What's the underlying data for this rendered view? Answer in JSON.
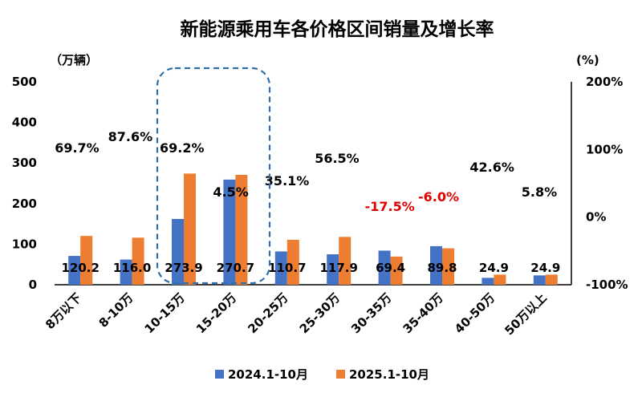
{
  "chart_data": {
    "type": "bar",
    "title": "新能源乘用车各价格区间销量及增长率",
    "y_unit_left": "（万辆）",
    "y_unit_right": "(%)",
    "ylim": [
      0,
      500
    ],
    "yticks": [
      0,
      100,
      200,
      300,
      400,
      500
    ],
    "y2lim": [
      -100,
      200
    ],
    "y2ticks": [
      "-100%",
      "0%",
      "100%",
      "200%"
    ],
    "categories": [
      "8万以下",
      "8-10万",
      "10-15万",
      "15-20万",
      "20-25万",
      "25-30万",
      "30-35万",
      "35-40万",
      "40-50万",
      "50万以上"
    ],
    "series": [
      {
        "name": "2024.1-10月",
        "color": "#4472C4",
        "values": [
          71,
          62,
          162,
          259,
          82,
          75,
          84,
          95,
          17,
          23
        ]
      },
      {
        "name": "2025.1-10月",
        "color": "#ED7D31",
        "values": [
          120.2,
          116.0,
          273.9,
          270.7,
          110.7,
          117.9,
          69.4,
          89.8,
          24.9,
          24.9
        ]
      }
    ],
    "value_labels": [
      "120.2",
      "116.0",
      "273.9",
      "270.7",
      "110.7",
      "117.9",
      "69.4",
      "89.8",
      "24.9",
      "24.9"
    ],
    "growth_labels": [
      "69.7%",
      "87.6%",
      "69.2%",
      "4.5%",
      "35.1%",
      "56.5%",
      "-17.5%",
      "-6.0%",
      "42.6%",
      "5.8%"
    ],
    "growth_colors": [
      "#000000",
      "#000000",
      "#000000",
      "#000000",
      "#000000",
      "#000000",
      "#E00000",
      "#E00000",
      "#000000",
      "#000000"
    ],
    "highlight": {
      "categories": [
        "10-15万",
        "15-20万"
      ],
      "style": "dashed rounded box",
      "color": "#2E6FA7"
    },
    "legend_position": "bottom",
    "grid": false
  }
}
